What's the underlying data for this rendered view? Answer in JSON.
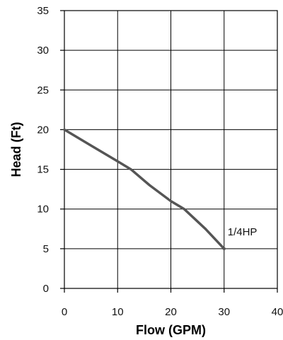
{
  "chart_data": {
    "type": "line",
    "title": "",
    "xlabel": "Flow (GPM)",
    "ylabel": "Head (Ft)",
    "xlim": [
      0,
      40
    ],
    "ylim": [
      0,
      35
    ],
    "xticks": [
      0,
      10,
      20,
      30,
      40
    ],
    "yticks": [
      0,
      5,
      10,
      15,
      20,
      25,
      30,
      35
    ],
    "grid": true,
    "series": [
      {
        "name": "1/4HP",
        "color": "#555555",
        "x": [
          0,
          5,
          10,
          12.5,
          16,
          20,
          22.5,
          26.5,
          30
        ],
        "y": [
          20,
          18,
          16,
          15,
          13,
          11,
          10,
          7.5,
          5
        ]
      }
    ],
    "annotations": [
      {
        "text": "1/4HP",
        "x": 30,
        "y": 5
      }
    ]
  }
}
